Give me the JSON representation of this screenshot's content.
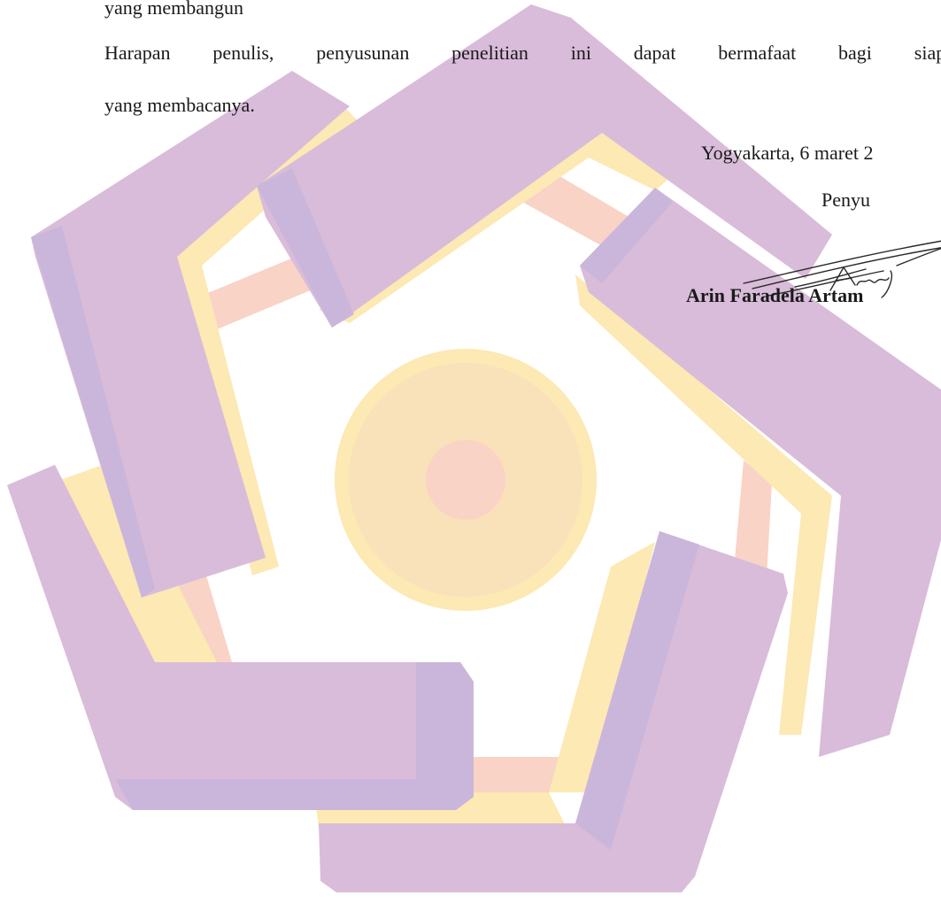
{
  "watermark": {
    "name": "logo-watermark",
    "colors": {
      "purple": "#d9bcd9",
      "purple_dark": "#cbb6db",
      "yellow": "#fce9b3",
      "peach": "#f9d3c6"
    }
  },
  "body_text": {
    "line_1": "yang membangun",
    "line_2_words": [
      "Harapan",
      "penulis,",
      "penyusunan",
      "penelitian",
      "ini",
      "dapat",
      "bermafaat",
      "bagi",
      "siapa"
    ],
    "line_3": "yang membacanya."
  },
  "closing": {
    "place_date": "Yogyakarta, 6 maret 2",
    "role": "Penyu",
    "signature_icon": "handwritten-signature",
    "name": "Arin Faradela Artam"
  }
}
